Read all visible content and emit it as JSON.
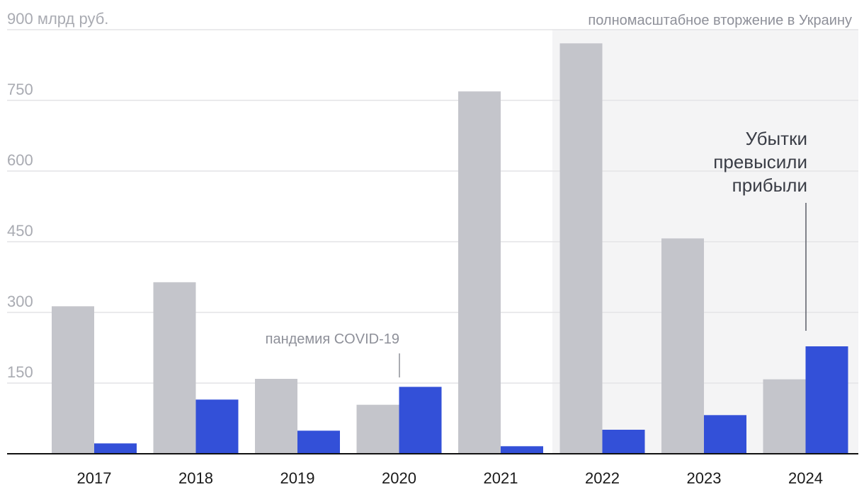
{
  "chart_data": {
    "type": "bar",
    "y_unit_label": "900 млрд руб.",
    "ylim": [
      0,
      900
    ],
    "y_ticks": [
      150,
      300,
      450,
      600,
      750
    ],
    "grid": true,
    "categories": [
      "2017",
      "2018",
      "2019",
      "2020",
      "2021",
      "2022",
      "2023",
      "2024"
    ],
    "series": [
      {
        "values": [
          313,
          364,
          159,
          104,
          769,
          871,
          457,
          158
        ]
      },
      {
        "values": [
          22,
          115,
          49,
          142,
          16,
          51,
          82,
          228
        ]
      }
    ],
    "annotations": {
      "shaded_region_label": "полномасштабное вторжение в Украину",
      "covid_label": "пандемия COVID-19",
      "callout_lines": [
        "Убытки",
        "превысили",
        "прибыли"
      ]
    }
  },
  "colors": {
    "series_0": "#c4c5cb",
    "series_1": "#3350d8",
    "shade": "#f4f4f5",
    "grid": "#e3e3e6",
    "axis": "#111111"
  }
}
